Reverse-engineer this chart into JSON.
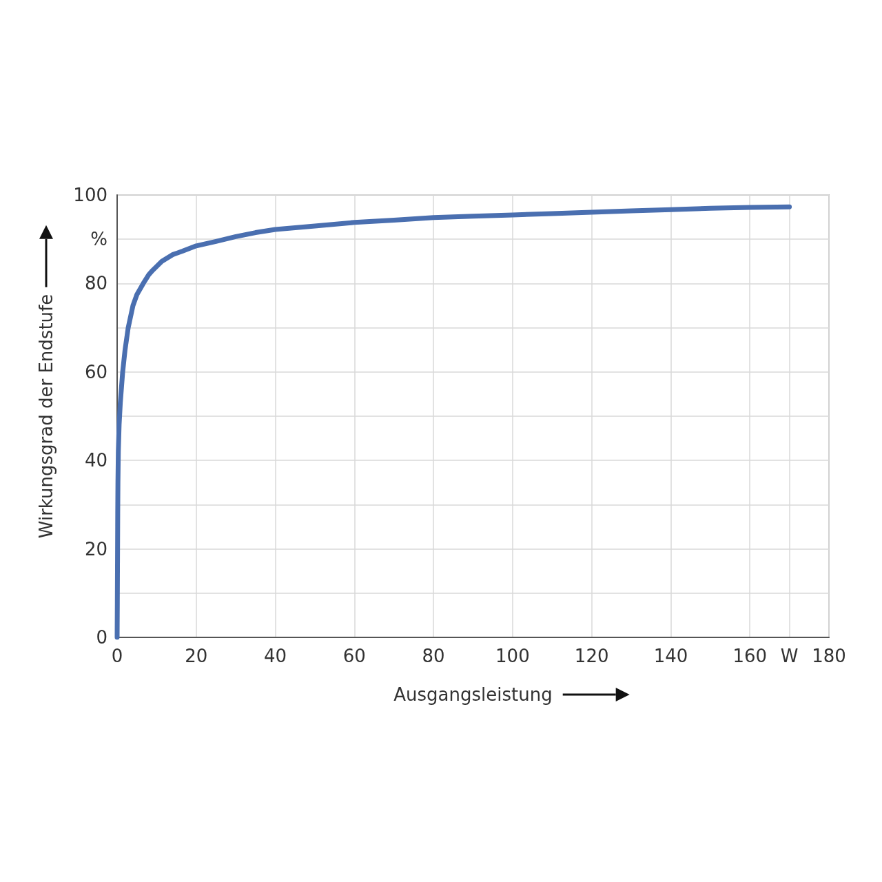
{
  "chart_data": {
    "type": "line",
    "xlabel": "Ausgangsleistung",
    "ylabel": "Wirkungsgrad der Endstufe",
    "x": [
      0,
      0.05,
      0.1,
      0.15,
      0.2,
      0.3,
      0.5,
      0.8,
      1.4,
      2,
      2.8,
      4,
      5,
      6.6,
      8,
      9,
      11.3,
      14,
      16.5,
      20,
      25,
      30,
      35,
      40,
      50,
      60,
      70,
      80,
      90,
      100,
      110,
      120,
      130,
      140,
      150,
      160,
      170
    ],
    "series": [
      {
        "color": "#4a6fb0",
        "values": [
          0,
          8,
          18,
          28,
          35,
          42,
          48,
          53,
          60,
          65,
          70,
          75,
          77.5,
          80,
          82,
          83,
          85,
          86.5,
          87.3,
          88.5,
          89.5,
          90.6,
          91.5,
          92.2,
          93,
          93.8,
          94.3,
          94.9,
          95.2,
          95.5,
          95.8,
          96.1,
          96.4,
          96.7,
          97,
          97.2,
          97.3
        ]
      }
    ],
    "xlim": [
      0,
      180
    ],
    "ylim": [
      0,
      100
    ],
    "xticks": [
      0,
      20,
      40,
      60,
      80,
      100,
      120,
      140,
      160,
      {
        "value": 170,
        "label": "W"
      },
      180
    ],
    "yticks": [
      0,
      {
        "value": 10,
        "label": null
      },
      20,
      {
        "value": 30,
        "label": null
      },
      40,
      {
        "value": 50,
        "label": null
      },
      60,
      {
        "value": 70,
        "label": null
      },
      80,
      {
        "value": 90,
        "label": "%"
      },
      100
    ],
    "grid": true,
    "marker": "none",
    "line_style": "solid"
  }
}
